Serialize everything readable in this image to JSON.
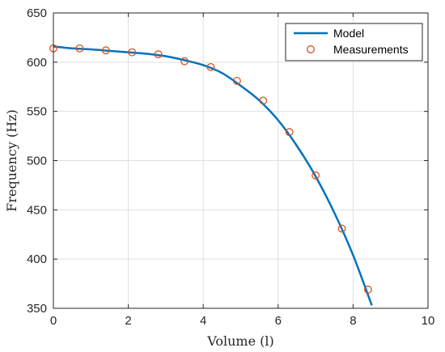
{
  "chart_data": {
    "type": "line",
    "xlabel": "Volume (l)",
    "ylabel": "Frequency (Hz)",
    "xlim": [
      0,
      10
    ],
    "ylim": [
      350,
      650
    ],
    "xticks": [
      0,
      2,
      4,
      6,
      8,
      10
    ],
    "yticks": [
      350,
      400,
      450,
      500,
      550,
      600,
      650
    ],
    "grid": true,
    "legend_position": "top-right",
    "colors": {
      "model": "#0072BD",
      "measurements": "#D95319"
    },
    "series": [
      {
        "name": "Model",
        "style": "line",
        "x": [
          0,
          0.5,
          1.0,
          1.5,
          2.0,
          2.5,
          3.0,
          3.5,
          4.0,
          4.5,
          5.0,
          5.5,
          6.0,
          6.5,
          7.0,
          7.5,
          8.0,
          8.5
        ],
        "y": [
          616,
          614,
          613,
          611.5,
          610,
          608.5,
          606,
          602,
          597,
          589,
          576,
          561,
          541,
          515,
          484,
          447,
          404,
          353
        ]
      },
      {
        "name": "Measurements",
        "style": "markers",
        "x": [
          0,
          0.7,
          1.4,
          2.1,
          2.8,
          3.5,
          4.2,
          4.9,
          5.6,
          6.3,
          7.0,
          7.7,
          8.4
        ],
        "y": [
          614,
          614,
          612,
          610,
          608,
          601,
          595,
          581,
          561,
          529,
          485,
          431,
          369
        ]
      }
    ]
  }
}
